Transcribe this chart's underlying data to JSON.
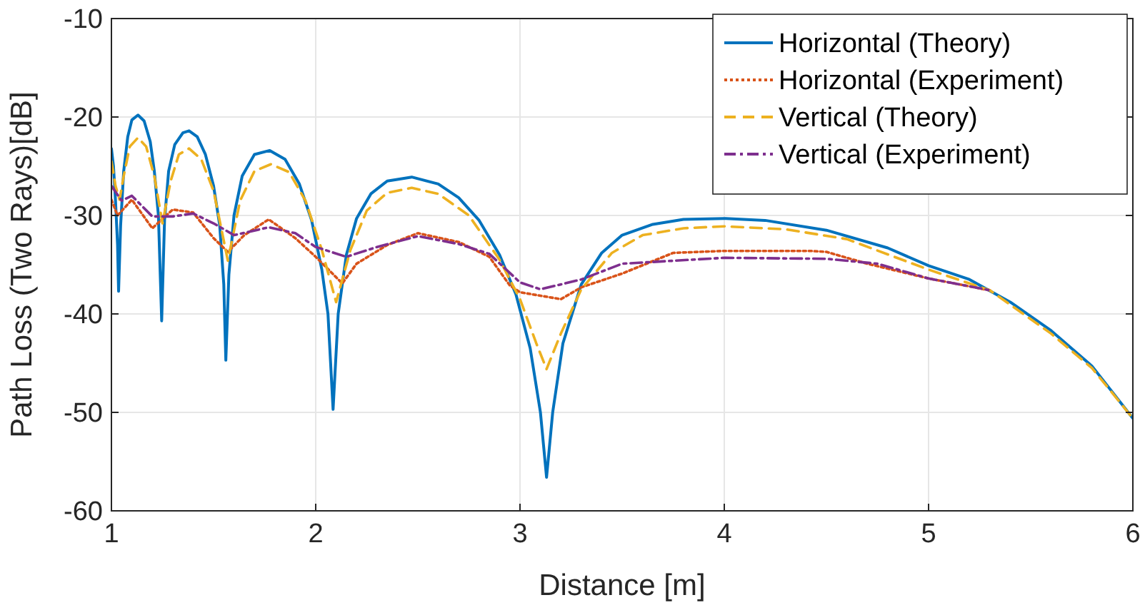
{
  "chart_data": {
    "type": "line",
    "xlabel": "Distance [m]",
    "ylabel": "Path Loss (Two Rays)[dB]",
    "xlim": [
      1,
      6
    ],
    "ylim": [
      -60,
      -10
    ],
    "xticks": [
      1,
      2,
      3,
      4,
      5,
      6
    ],
    "yticks": [
      -60,
      -50,
      -40,
      -30,
      -20,
      -10
    ],
    "grid": true,
    "legend": "top right",
    "marker": "none",
    "series": [
      {
        "name": "Horizontal (Theory)",
        "color": "#0072bd",
        "line_style": "solid",
        "x": [
          1.0,
          1.01,
          1.02,
          1.03,
          1.035,
          1.045,
          1.06,
          1.08,
          1.1,
          1.13,
          1.16,
          1.19,
          1.21,
          1.23,
          1.246,
          1.26,
          1.28,
          1.31,
          1.35,
          1.38,
          1.42,
          1.46,
          1.5,
          1.53,
          1.55,
          1.56,
          1.575,
          1.6,
          1.64,
          1.7,
          1.775,
          1.85,
          1.92,
          1.98,
          2.03,
          2.06,
          2.085,
          2.11,
          2.15,
          2.2,
          2.27,
          2.35,
          2.47,
          2.6,
          2.7,
          2.8,
          2.9,
          2.98,
          3.05,
          3.1,
          3.13,
          3.16,
          3.21,
          3.3,
          3.4,
          3.5,
          3.65,
          3.8,
          4.0,
          4.2,
          4.5,
          4.8,
          5.0,
          5.2,
          5.4,
          5.6,
          5.8,
          6.0
        ],
        "values": [
          -23.2,
          -25,
          -28.5,
          -33,
          -37.7,
          -31,
          -25.5,
          -22,
          -20.3,
          -19.8,
          -20.4,
          -22.5,
          -25.5,
          -30,
          -40.7,
          -30.5,
          -25.5,
          -22.8,
          -21.6,
          -21.4,
          -22,
          -23.8,
          -27,
          -31,
          -37,
          -44.7,
          -36,
          -30,
          -26,
          -23.8,
          -23.4,
          -24.3,
          -26.8,
          -30.5,
          -35.5,
          -40,
          -49.7,
          -40,
          -34,
          -30.3,
          -27.8,
          -26.5,
          -26.1,
          -26.8,
          -28.2,
          -30.5,
          -34,
          -38,
          -43.5,
          -50,
          -56.6,
          -50,
          -43,
          -37,
          -33.8,
          -32,
          -30.9,
          -30.4,
          -30.3,
          -30.5,
          -31.5,
          -33.3,
          -35.1,
          -36.5,
          -38.8,
          -41.7,
          -45.3,
          -50.6
        ]
      },
      {
        "name": "Horizontal (Experiment)",
        "color": "#d95319",
        "line_style": "dotted",
        "x": [
          1.0,
          1.03,
          1.1,
          1.2,
          1.3,
          1.4,
          1.5,
          1.57,
          1.65,
          1.77,
          1.9,
          2.0,
          2.13,
          2.2,
          2.35,
          2.5,
          2.7,
          2.85,
          2.95,
          3.0,
          3.2,
          3.3,
          3.5,
          3.75,
          4.0,
          4.42,
          4.5,
          4.7,
          5.0,
          5.3
        ],
        "values": [
          -28.4,
          -30,
          -28.4,
          -31.3,
          -29.4,
          -29.7,
          -32.3,
          -33.7,
          -32,
          -30.4,
          -32.3,
          -34.2,
          -36.9,
          -34.9,
          -33,
          -31.8,
          -32.7,
          -34.2,
          -37.1,
          -37.8,
          -38.5,
          -37.3,
          -35.9,
          -33.8,
          -33.6,
          -33.6,
          -33.7,
          -34.9,
          -36.4,
          -37.6
        ]
      },
      {
        "name": "Vertical (Theory)",
        "color": "#edb120",
        "line_style": "dashed",
        "x": [
          1.0,
          1.02,
          1.04,
          1.06,
          1.09,
          1.13,
          1.17,
          1.21,
          1.25,
          1.29,
          1.33,
          1.38,
          1.44,
          1.5,
          1.57,
          1.63,
          1.7,
          1.78,
          1.87,
          1.95,
          2.03,
          2.1,
          2.17,
          2.25,
          2.35,
          2.47,
          2.6,
          2.75,
          2.9,
          3.0,
          3.08,
          3.13,
          3.2,
          3.3,
          3.45,
          3.6,
          3.8,
          4.0,
          4.3,
          4.6,
          5.0,
          5.3,
          5.6,
          5.8,
          6.0
        ],
        "values": [
          -24.5,
          -27,
          -28.4,
          -26,
          -23,
          -22.1,
          -23,
          -26,
          -30.8,
          -26.5,
          -23.8,
          -23.2,
          -24.3,
          -27.5,
          -34.6,
          -28.5,
          -25.5,
          -24.8,
          -25.6,
          -28.5,
          -33.5,
          -38.8,
          -33.5,
          -29.5,
          -27.7,
          -27.2,
          -27.8,
          -30,
          -34.5,
          -38.5,
          -43,
          -45.6,
          -42,
          -37.5,
          -33.8,
          -32,
          -31.3,
          -31.1,
          -31.4,
          -32.4,
          -35.5,
          -37.6,
          -42,
          -45.5,
          -50.6
        ]
      },
      {
        "name": "Vertical (Experiment)",
        "color": "#7e2f8e",
        "line_style": "dashdot",
        "x": [
          1.0,
          1.05,
          1.1,
          1.2,
          1.3,
          1.4,
          1.5,
          1.6,
          1.77,
          1.9,
          2.0,
          2.15,
          2.3,
          2.5,
          2.7,
          2.85,
          3.0,
          3.1,
          3.3,
          3.5,
          4.0,
          4.5,
          4.75,
          5.0,
          5.3
        ],
        "values": [
          -27,
          -28.5,
          -28,
          -30.1,
          -30.1,
          -29.8,
          -30.8,
          -32,
          -31.2,
          -31.8,
          -33.2,
          -34.2,
          -33.2,
          -32.1,
          -32.9,
          -33.9,
          -36.8,
          -37.5,
          -36.5,
          -34.9,
          -34.3,
          -34.4,
          -34.9,
          -36.4,
          -37.6
        ]
      }
    ]
  }
}
